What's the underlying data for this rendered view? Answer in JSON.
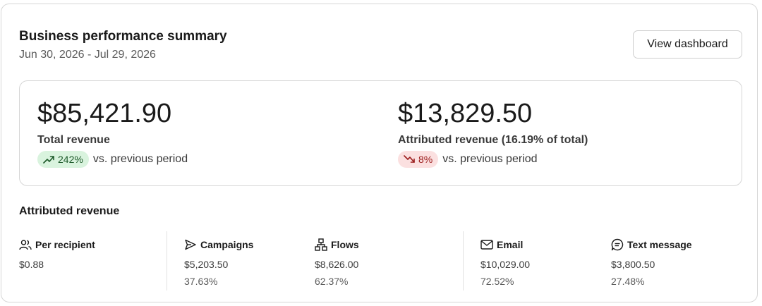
{
  "header": {
    "title": "Business performance summary",
    "date_range": "Jun 30, 2026 - Jul 29, 2026",
    "view_button_label": "View dashboard"
  },
  "summary": {
    "total": {
      "value": "$85,421.90",
      "label": "Total revenue",
      "change": "242%",
      "direction": "up",
      "change_icon": "trending-up-icon",
      "comparison": "vs. previous period"
    },
    "attributed": {
      "value": "$13,829.50",
      "label": "Attributed revenue (16.19% of total)",
      "change": "8%",
      "direction": "down",
      "change_icon": "trending-down-icon",
      "comparison": "vs. previous period"
    }
  },
  "attributed_section": {
    "title": "Attributed revenue",
    "per_recipient": {
      "label": "Per recipient",
      "icon": "users-icon",
      "value": "$0.88"
    },
    "campaigns": {
      "label": "Campaigns",
      "icon": "send-icon",
      "value": "$5,203.50",
      "percent": "37.63%"
    },
    "flows": {
      "label": "Flows",
      "icon": "flow-icon",
      "value": "$8,626.00",
      "percent": "62.37%"
    },
    "email": {
      "label": "Email",
      "icon": "mail-icon",
      "value": "$10,029.00",
      "percent": "72.52%"
    },
    "text_message": {
      "label": "Text message",
      "icon": "message-icon",
      "value": "$3,800.50",
      "percent": "27.48%"
    }
  },
  "colors": {
    "up_badge_bg": "#d9f3de",
    "down_badge_bg": "#fbe0e0"
  }
}
